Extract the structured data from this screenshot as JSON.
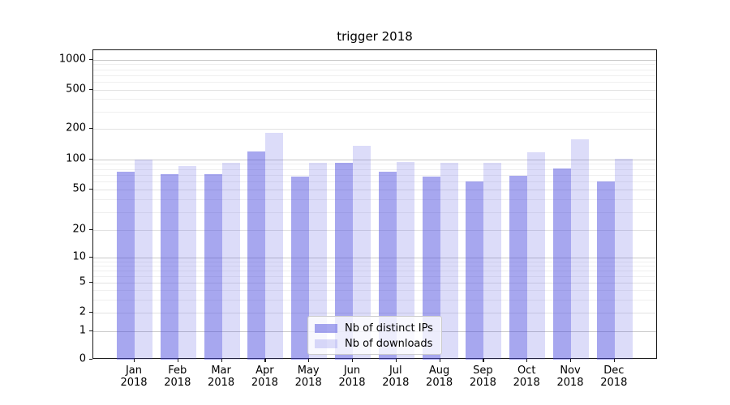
{
  "title": "trigger 2018",
  "legend": {
    "items": [
      {
        "label": "Nb of distinct IPs",
        "color": "rgba(68,68,221,0.47)"
      },
      {
        "label": "Nb of downloads",
        "color": "rgba(68,68,221,0.19)"
      }
    ]
  },
  "axes": {
    "y_ticks": [
      0,
      1,
      2,
      5,
      10,
      20,
      50,
      100,
      200,
      500,
      1000
    ],
    "y_tick_labels": [
      "0",
      "1",
      "2",
      "5",
      "10",
      "20",
      "50",
      "100",
      "200",
      "500",
      "1000"
    ],
    "x_month_labels": [
      "Jan",
      "Feb",
      "Mar",
      "Apr",
      "May",
      "Jun",
      "Jul",
      "Aug",
      "Sep",
      "Oct",
      "Nov",
      "Dec"
    ],
    "x_year_label": "2018"
  },
  "chart_data": {
    "type": "bar",
    "title": "trigger 2018",
    "categories": [
      "Jan 2018",
      "Feb 2018",
      "Mar 2018",
      "Apr 2018",
      "May 2018",
      "Jun 2018",
      "Jul 2018",
      "Aug 2018",
      "Sep 2018",
      "Oct 2018",
      "Nov 2018",
      "Dec 2018"
    ],
    "series": [
      {
        "name": "Nb of distinct IPs",
        "color": "rgba(68,68,221,0.47)",
        "values": [
          75,
          72,
          72,
          120,
          68,
          93,
          75,
          67,
          60,
          69,
          81,
          60
        ]
      },
      {
        "name": "Nb of downloads",
        "color": "rgba(68,68,221,0.19)",
        "values": [
          100,
          86,
          93,
          182,
          93,
          135,
          94,
          92,
          93,
          117,
          158,
          102
        ]
      }
    ],
    "xlabel": "",
    "ylabel": "",
    "yscale": "symlog",
    "yticks": [
      0,
      1,
      2,
      5,
      10,
      20,
      50,
      100,
      200,
      500,
      1000
    ],
    "ylim": [
      0,
      1250
    ],
    "grid": true,
    "legend_position": "lower center"
  }
}
